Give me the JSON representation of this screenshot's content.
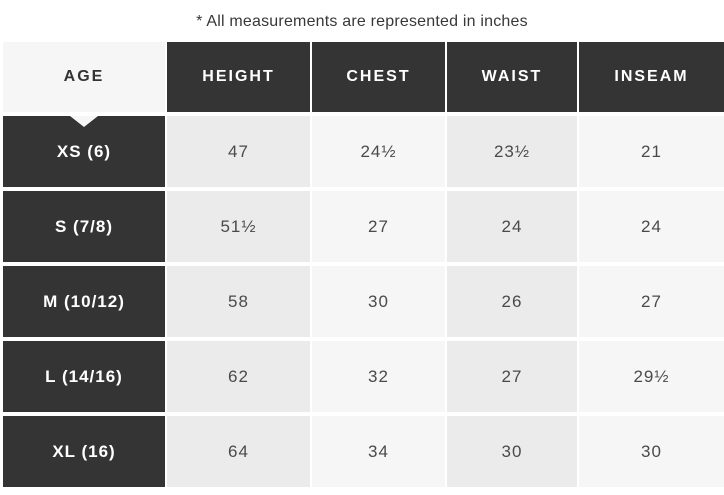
{
  "caption": "* All measurements are represented in inches",
  "table": {
    "columns": [
      "AGE",
      "HEIGHT",
      "CHEST",
      "WAIST",
      "INSEAM"
    ],
    "rows": [
      {
        "label": "XS (6)",
        "values": [
          "47",
          "24½",
          "23½",
          "21"
        ]
      },
      {
        "label": "S (7/8)",
        "values": [
          "51½",
          "27",
          "24",
          "24"
        ]
      },
      {
        "label": "M (10/12)",
        "values": [
          "58",
          "30",
          "26",
          "27"
        ]
      },
      {
        "label": "L (14/16)",
        "values": [
          "62",
          "32",
          "27",
          "29½"
        ]
      },
      {
        "label": "XL (16)",
        "values": [
          "64",
          "34",
          "30",
          "30"
        ]
      }
    ]
  },
  "colors": {
    "dark": "#343434",
    "shade_a": "#ebebeb",
    "shade_b": "#f6f6f6",
    "header_text": "#ffffff",
    "value_text": "#4a4a4a",
    "caption_text": "#383838"
  },
  "chart_data": {
    "type": "table",
    "title": "* All measurements are represented in inches",
    "units": "inches",
    "columns": [
      "AGE",
      "HEIGHT",
      "CHEST",
      "WAIST",
      "INSEAM"
    ],
    "rows": [
      [
        "XS (6)",
        "47",
        "24½",
        "23½",
        "21"
      ],
      [
        "S (7/8)",
        "51½",
        "27",
        "24",
        "24"
      ],
      [
        "M (10/12)",
        "58",
        "30",
        "26",
        "27"
      ],
      [
        "L (14/16)",
        "62",
        "32",
        "27",
        "29½"
      ],
      [
        "XL (16)",
        "64",
        "34",
        "30",
        "30"
      ]
    ]
  }
}
